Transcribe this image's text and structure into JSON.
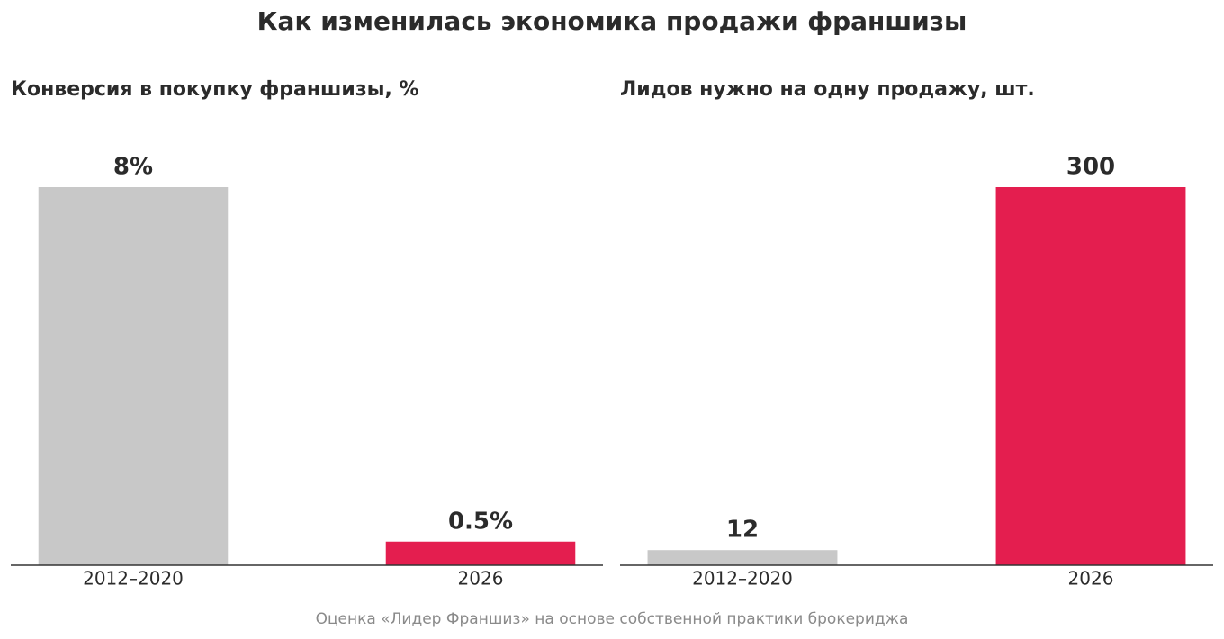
{
  "title": "Как изменилась экономика продажи франшизы",
  "footnote": "Оценка «Лидер Франшиз» на основе собственной практики брокериджа",
  "chart_data": [
    {
      "type": "bar",
      "title": "Конверсия в покупку франшизы, %",
      "categories": [
        "2012–2020",
        "2026"
      ],
      "values": [
        8,
        0.5
      ],
      "value_labels": [
        "8%",
        "0.5%"
      ],
      "colors": [
        "#c8c8c8",
        "#e41e4f"
      ]
    },
    {
      "type": "bar",
      "title": "Лидов нужно на одну продажу, шт.",
      "categories": [
        "2012–2020",
        "2026"
      ],
      "values": [
        12,
        300
      ],
      "colors": [
        "#c8c8c8",
        "#e41e4f"
      ]
    }
  ]
}
